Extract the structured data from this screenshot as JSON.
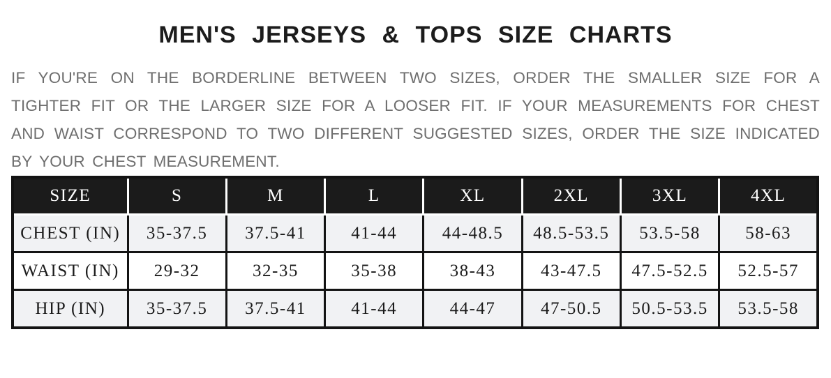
{
  "page": {
    "title": "MEN'S JERSEYS & TOPS SIZE CHARTS"
  },
  "intro": {
    "lines": [
      "IF YOU'RE ON THE BORDERLINE BETWEEN TWO SIZES, ORDER THE SMALLER SIZE FOR A",
      "TIGHTER FIT OR THE LARGER SIZE FOR A LOOSER FIT. IF YOUR MEASUREMENTS FOR CHEST",
      "AND WAIST CORRESPOND TO TWO DIFFERENT SUGGESTED SIZES, ORDER THE SIZE INDICATED",
      "BY YOUR CHEST MEASUREMENT."
    ]
  },
  "size_chart": {
    "headers": [
      "SIZE",
      "S",
      "M",
      "L",
      "XL",
      "2XL",
      "3XL",
      "4XL"
    ],
    "rows": [
      {
        "label": "CHEST (IN)",
        "values": [
          "35-37.5",
          "37.5-41",
          "41-44",
          "44-48.5",
          "48.5-53.5",
          "53.5-58",
          "58-63"
        ]
      },
      {
        "label": "WAIST (IN)",
        "values": [
          "29-32",
          "32-35",
          "35-38",
          "38-43",
          "43-47.5",
          "47.5-52.5",
          "52.5-57"
        ]
      },
      {
        "label": "HIP (IN)",
        "values": [
          "35-37.5",
          "37.5-41",
          "41-44",
          "44-47",
          "47-50.5",
          "50.5-53.5",
          "53.5-58"
        ]
      }
    ],
    "colors": {
      "header_background": "#1b1b1b",
      "header_text": "#ffffff",
      "alt_row_background": "#f1f2f4",
      "row_background": "#ffffff",
      "body_text": "#1b1b1b",
      "intro_text": "#6e6e6e",
      "title_text": "#1c1c1c",
      "grid_border": "#131313"
    }
  }
}
